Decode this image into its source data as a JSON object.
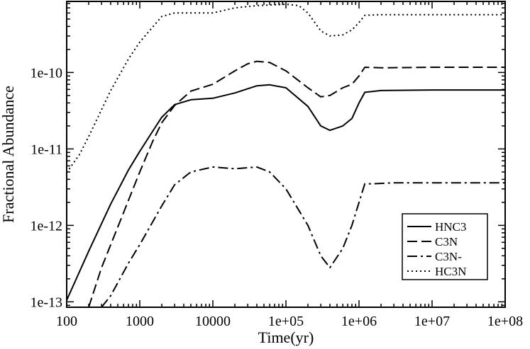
{
  "chart_data": {
    "type": "line",
    "xlabel": "Time(yr)",
    "ylabel": "Fractional Abundance",
    "xscale": "log",
    "yscale": "log",
    "xlim": [
      100,
      100000000
    ],
    "ylim": [
      8.5e-14,
      8.5e-10
    ],
    "x_ticks": [
      100,
      1000,
      10000,
      100000,
      1000000,
      10000000,
      100000000
    ],
    "x_tick_labels": [
      "100",
      "1000",
      "10000",
      "1e+05",
      "1e+06",
      "1e+07",
      "1e+08"
    ],
    "y_ticks": [
      1e-13,
      1e-12,
      1e-11,
      1e-10
    ],
    "y_tick_labels": [
      "1e-13",
      "1e-12",
      "1e-11",
      "1e-10"
    ],
    "grid": false,
    "legend_position": "bottom-right",
    "series": [
      {
        "name": "HNC3",
        "dash": "solid",
        "x": [
          100,
          200,
          400,
          700,
          1000,
          1500,
          2000,
          3000,
          5000,
          10000,
          20000,
          40000,
          60000,
          100000,
          200000,
          300000,
          400000,
          600000,
          800000,
          1000000,
          1200000,
          2000000,
          10000000,
          100000000
        ],
        "y": [
          1.05e-13,
          4.6e-13,
          1.9e-12,
          5.3e-12,
          9.3e-12,
          1.7e-11,
          2.6e-11,
          3.8e-11,
          4.4e-11,
          4.6e-11,
          5.4e-11,
          6.7e-11,
          6.9e-11,
          6.3e-11,
          3.6e-11,
          2e-11,
          1.75e-11,
          2e-11,
          2.5e-11,
          4e-11,
          5.5e-11,
          5.8e-11,
          5.9e-11,
          5.9e-11
        ]
      },
      {
        "name": "C3N",
        "dash": "dashed",
        "x": [
          200,
          300,
          500,
          1000,
          1500,
          2000,
          3000,
          5000,
          10000,
          20000,
          30000,
          40000,
          60000,
          100000,
          200000,
          300000,
          400000,
          600000,
          800000,
          1000000,
          1200000,
          2000000,
          10000000,
          100000000
        ],
        "y": [
          8.5e-14,
          2.8e-13,
          9.5e-13,
          5e-12,
          1.25e-11,
          2.2e-11,
          3.7e-11,
          5.7e-11,
          7e-11,
          1.05e-10,
          1.3e-10,
          1.4e-10,
          1.35e-10,
          1.05e-10,
          6.3e-11,
          4.8e-11,
          5e-11,
          6.3e-11,
          7e-11,
          9e-11,
          1.17e-10,
          1.15e-10,
          1.17e-10,
          1.17e-10
        ]
      },
      {
        "name": "C3N-",
        "dash": "dashdot",
        "x": [
          300,
          400,
          700,
          1000,
          2000,
          3000,
          5000,
          10000,
          20000,
          40000,
          60000,
          100000,
          200000,
          300000,
          400000,
          600000,
          800000,
          1000000,
          1200000,
          1500000,
          3000000,
          10000000,
          100000000
        ],
        "y": [
          8.5e-14,
          1.2e-13,
          3.2e-13,
          5.6e-13,
          1.8e-12,
          3.4e-12,
          5e-12,
          5.8e-12,
          5.5e-12,
          5.8e-12,
          5e-12,
          3e-12,
          1e-12,
          4e-13,
          2.8e-13,
          5e-13,
          1e-12,
          2e-12,
          3.5e-12,
          3.5e-12,
          3.6e-12,
          3.6e-12,
          3.6e-12
        ]
      },
      {
        "name": "HC3N",
        "dash": "dotted",
        "x": [
          100,
          150,
          200,
          400,
          700,
          1000,
          2000,
          3000,
          5000,
          10000,
          20000,
          40000,
          100000,
          150000,
          200000,
          300000,
          400000,
          600000,
          800000,
          1000000,
          1200000,
          2000000,
          10000000,
          100000000
        ],
        "y": [
          4.9e-12,
          8.5e-12,
          1.45e-11,
          5.8e-11,
          1.5e-10,
          2.5e-10,
          5.4e-10,
          6e-10,
          6e-10,
          6e-10,
          7e-10,
          7.5e-10,
          7.8e-10,
          7.5e-10,
          6e-10,
          3.5e-10,
          3e-10,
          3.1e-10,
          3.6e-10,
          4.5e-10,
          5.6e-10,
          5.7e-10,
          5.7e-10,
          5.7e-10
        ]
      }
    ]
  }
}
